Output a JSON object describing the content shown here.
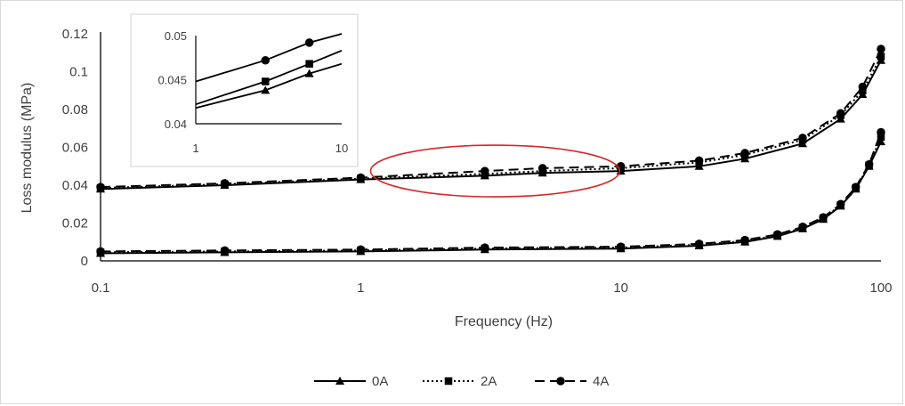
{
  "chart_data": {
    "type": "line",
    "xlabel": "Frequency (Hz)",
    "ylabel": "Loss modulus (MPa)",
    "x_scale": "log",
    "xlim": [
      0.1,
      100
    ],
    "ylim": [
      0,
      0.12
    ],
    "x_ticks": [
      "0.1",
      "1",
      "10",
      "100"
    ],
    "y_ticks": [
      "0",
      "0.02",
      "0.04",
      "0.06",
      "0.08",
      "0.1",
      "0.12"
    ],
    "legend_position": "bottom",
    "grid": false,
    "series": [
      {
        "name": "0A",
        "marker": "triangle",
        "line_style": "solid",
        "upper_curve": {
          "x": [
            0.1,
            0.3,
            1,
            3,
            5,
            10,
            20,
            30,
            50,
            70,
            85,
            100
          ],
          "y": [
            0.038,
            0.04,
            0.043,
            0.045,
            0.0465,
            0.0475,
            0.05,
            0.054,
            0.062,
            0.075,
            0.088,
            0.106
          ]
        },
        "lower_curve": {
          "x": [
            0.1,
            0.3,
            1,
            3,
            10,
            20,
            30,
            40,
            50,
            60,
            70,
            80,
            90,
            100
          ],
          "y": [
            0.004,
            0.0045,
            0.005,
            0.006,
            0.0065,
            0.008,
            0.01,
            0.013,
            0.017,
            0.022,
            0.029,
            0.038,
            0.05,
            0.063
          ]
        }
      },
      {
        "name": "2A",
        "marker": "square",
        "line_style": "dotted",
        "upper_curve": {
          "x": [
            0.1,
            0.3,
            1,
            3,
            5,
            10,
            20,
            30,
            50,
            70,
            85,
            100
          ],
          "y": [
            0.0385,
            0.0405,
            0.0435,
            0.046,
            0.0475,
            0.049,
            0.052,
            0.056,
            0.064,
            0.077,
            0.09,
            0.108
          ]
        },
        "lower_curve": {
          "x": [
            0.1,
            0.3,
            1,
            3,
            10,
            20,
            30,
            40,
            50,
            60,
            70,
            80,
            90,
            100
          ],
          "y": [
            0.0045,
            0.005,
            0.0055,
            0.0065,
            0.007,
            0.0085,
            0.0105,
            0.0135,
            0.0175,
            0.0225,
            0.0295,
            0.0385,
            0.0505,
            0.0655
          ]
        }
      },
      {
        "name": "4A",
        "marker": "circle",
        "line_style": "dashed",
        "upper_curve": {
          "x": [
            0.1,
            0.3,
            1,
            3,
            5,
            10,
            20,
            30,
            50,
            70,
            85,
            100
          ],
          "y": [
            0.039,
            0.041,
            0.044,
            0.0475,
            0.049,
            0.05,
            0.053,
            0.057,
            0.065,
            0.078,
            0.092,
            0.112
          ]
        },
        "lower_curve": {
          "x": [
            0.1,
            0.3,
            1,
            3,
            10,
            20,
            30,
            40,
            50,
            60,
            70,
            80,
            90,
            100
          ],
          "y": [
            0.005,
            0.0055,
            0.006,
            0.007,
            0.0075,
            0.009,
            0.011,
            0.014,
            0.018,
            0.023,
            0.03,
            0.039,
            0.051,
            0.068
          ]
        }
      }
    ],
    "inset": {
      "type": "line",
      "x_scale": "log",
      "xlim": [
        1,
        10
      ],
      "ylim": [
        0.04,
        0.05
      ],
      "x_ticks": [
        "1",
        "10"
      ],
      "y_ticks": [
        "0.04",
        "0.045",
        "0.05"
      ],
      "series": [
        {
          "name": "0A",
          "x": [
            1,
            3,
            6,
            10
          ],
          "y": [
            0.0418,
            0.0438,
            0.0457,
            0.0468
          ]
        },
        {
          "name": "2A",
          "x": [
            1,
            3,
            6,
            10
          ],
          "y": [
            0.0422,
            0.0448,
            0.0468,
            0.0483
          ]
        },
        {
          "name": "4A",
          "x": [
            1,
            3,
            6,
            10
          ],
          "y": [
            0.0448,
            0.0472,
            0.0492,
            0.0502
          ]
        }
      ]
    },
    "annotation": {
      "shape": "ellipse",
      "color": "#d62728",
      "highlights_x_range": [
        1.2,
        9
      ]
    },
    "colors": {
      "series": "#000000",
      "axis_text": "#404040"
    }
  }
}
